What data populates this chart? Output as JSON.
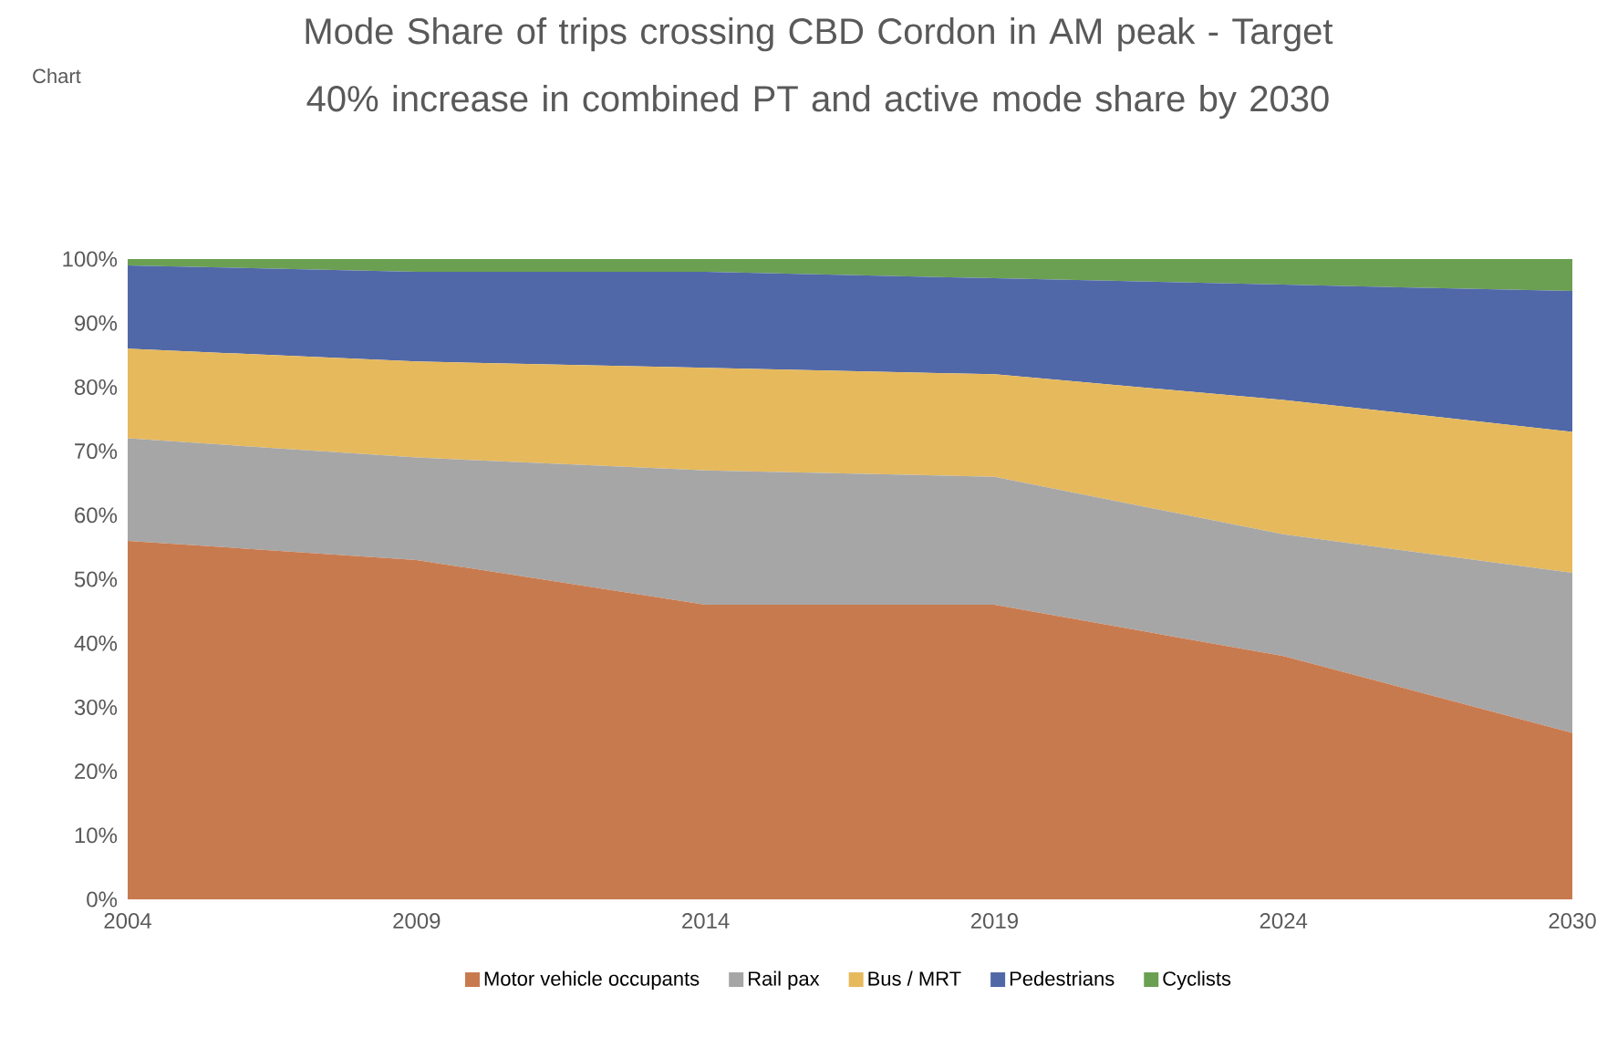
{
  "chart_data": {
    "type": "area",
    "stacked": true,
    "title": "Mode Share of trips crossing CBD Cordon in AM peak - Target 40% increase in combined PT and active mode share by 2030",
    "annotations": [
      "Chart"
    ],
    "categories": [
      "2004",
      "2009",
      "2014",
      "2019",
      "2024",
      "2030"
    ],
    "ylim": [
      0,
      100
    ],
    "yticks": [
      {
        "value": 0,
        "label": "0%"
      },
      {
        "value": 10,
        "label": "10%"
      },
      {
        "value": 20,
        "label": "20%"
      },
      {
        "value": 30,
        "label": "30%"
      },
      {
        "value": 40,
        "label": "40%"
      },
      {
        "value": 50,
        "label": "50%"
      },
      {
        "value": 60,
        "label": "60%"
      },
      {
        "value": 70,
        "label": "70%"
      },
      {
        "value": 80,
        "label": "80%"
      },
      {
        "value": 90,
        "label": "90%"
      },
      {
        "value": 100,
        "label": "100%"
      }
    ],
    "legend": "bottom",
    "series": [
      {
        "name": "Motor vehicle occupants",
        "color": "#c87a4f",
        "values": [
          56,
          53,
          46,
          46,
          38,
          26
        ]
      },
      {
        "name": "Rail pax",
        "color": "#a6a6a6",
        "values": [
          16,
          16,
          21,
          20,
          19,
          25
        ]
      },
      {
        "name": "Bus / MRT",
        "color": "#e6b95c",
        "values": [
          14,
          15,
          16,
          16,
          21,
          22
        ]
      },
      {
        "name": "Pedestrians",
        "color": "#5068a8",
        "values": [
          13,
          14,
          15,
          15,
          18,
          22
        ]
      },
      {
        "name": "Cyclists",
        "color": "#6ba052",
        "values": [
          1,
          2,
          2,
          3,
          4,
          5
        ]
      }
    ]
  }
}
